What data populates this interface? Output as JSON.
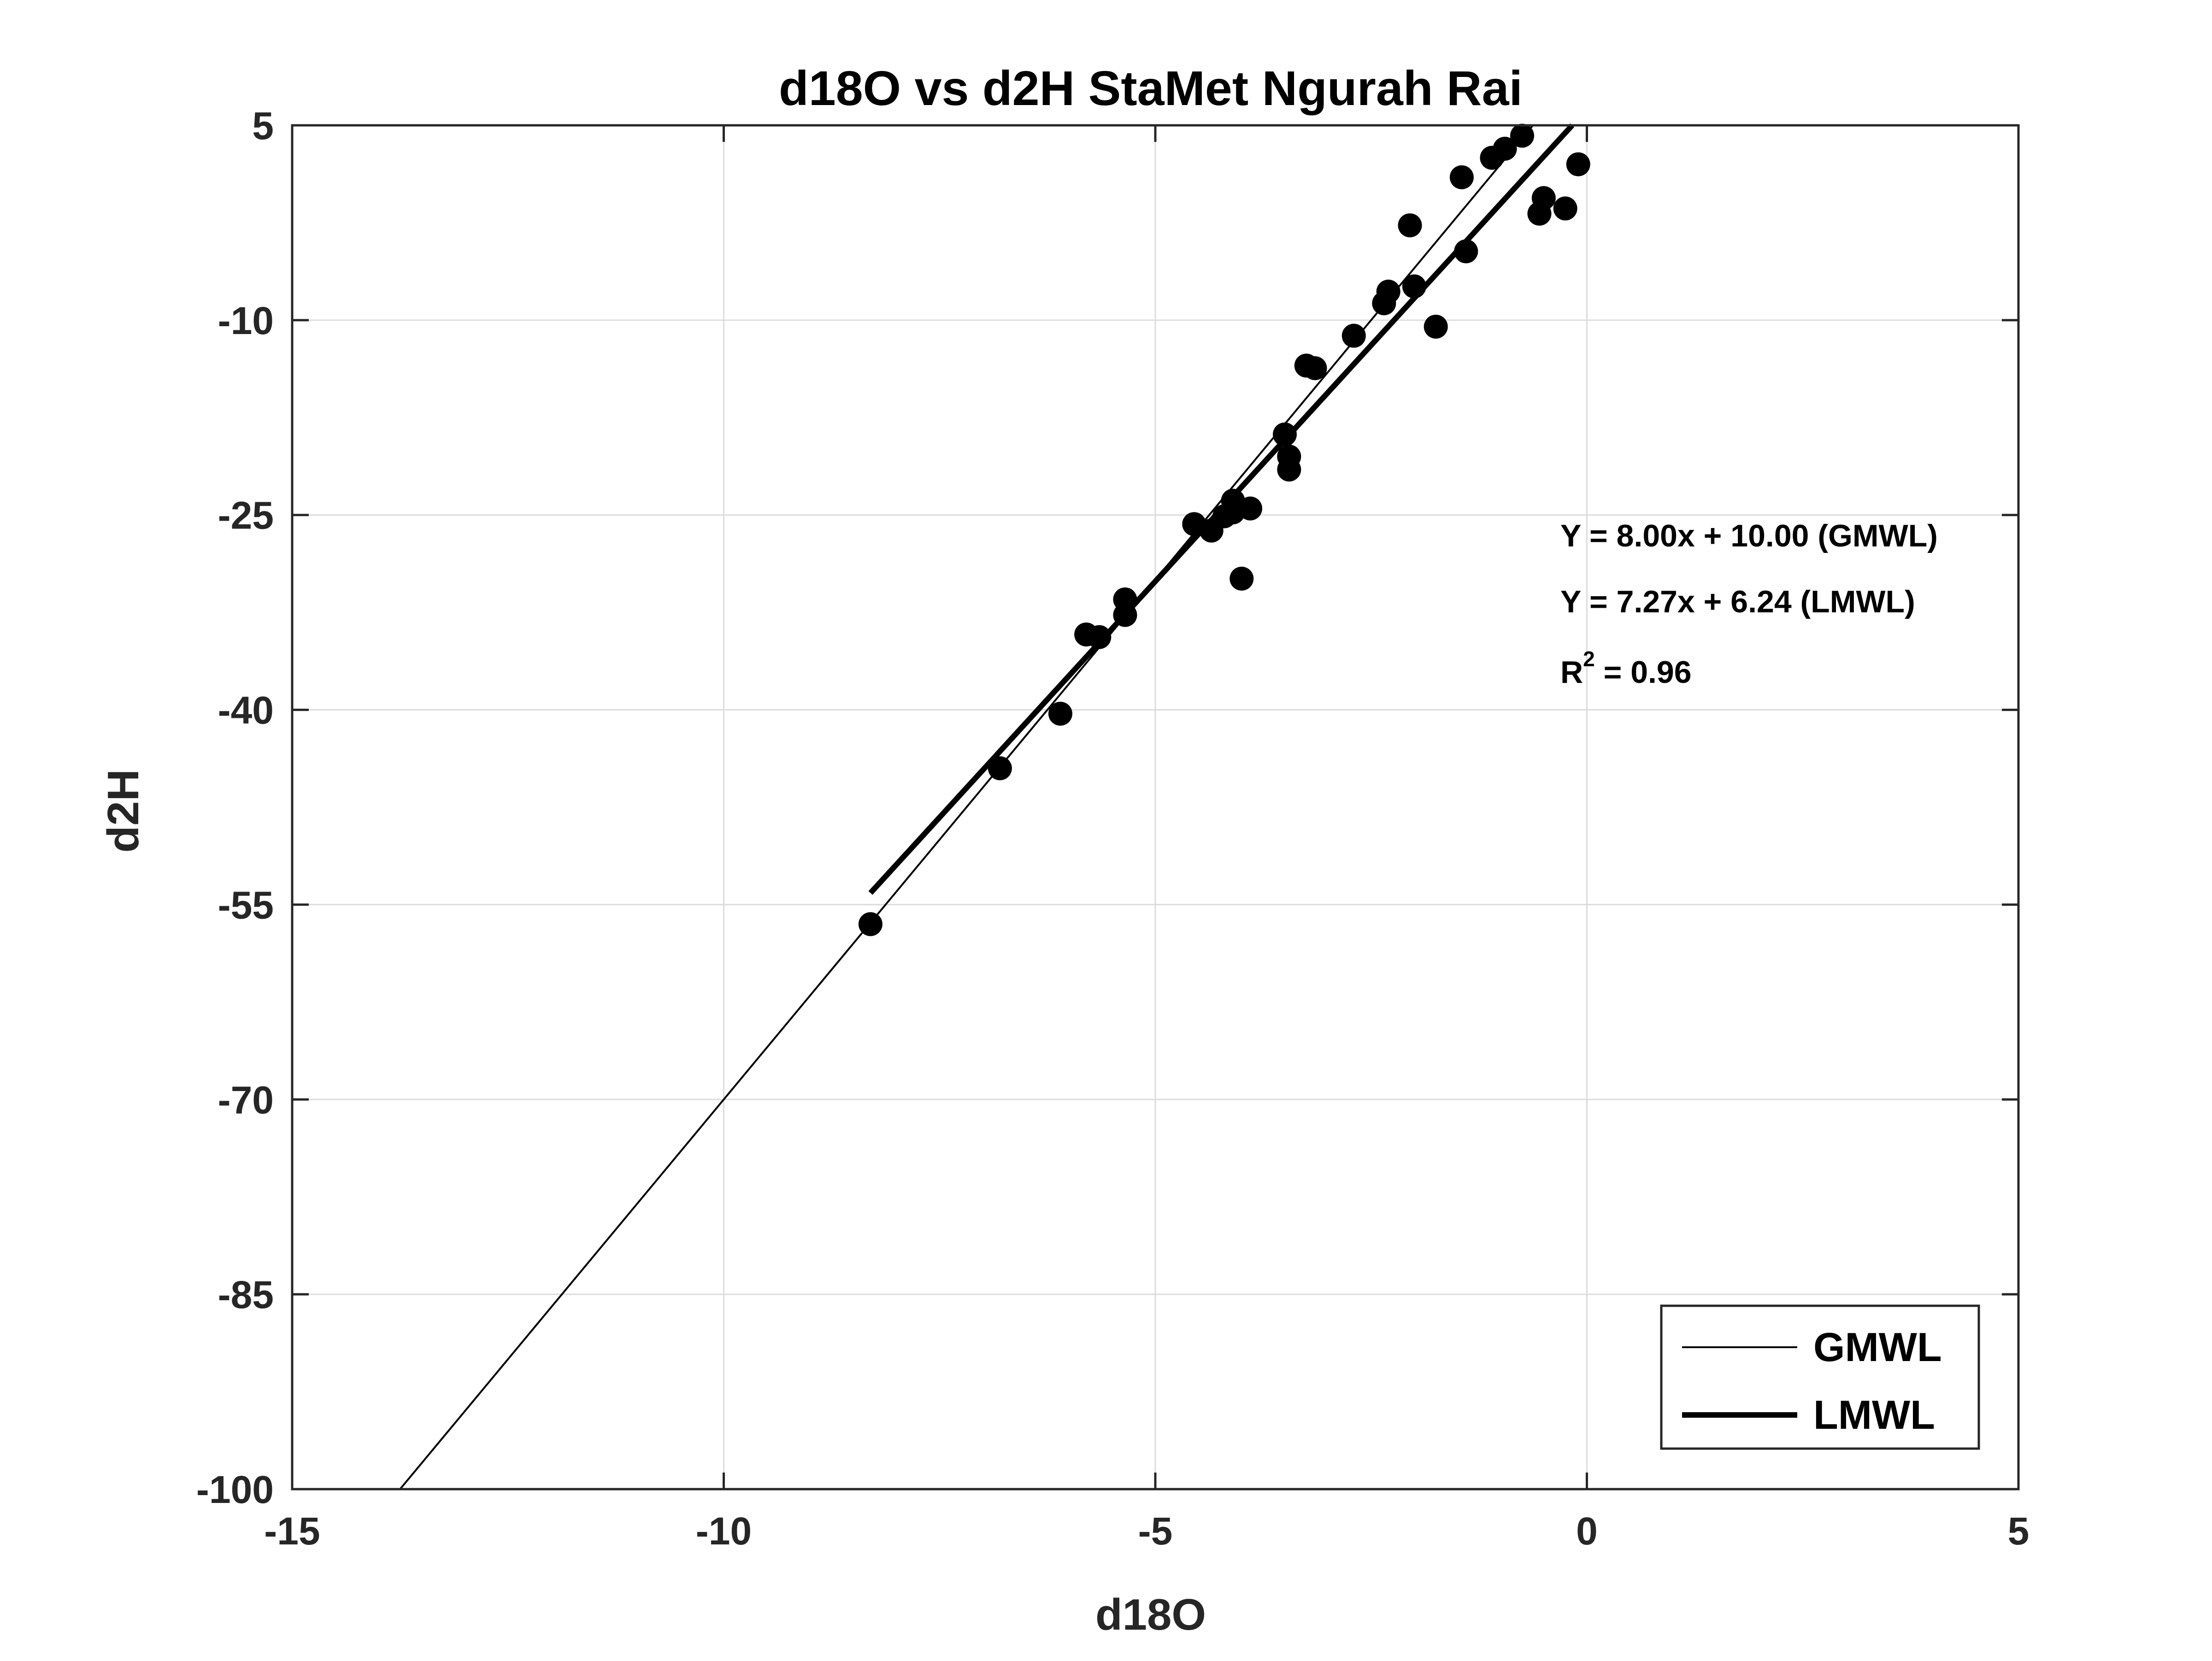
{
  "chart_data": {
    "type": "scatter",
    "title": "d18O vs d2H StaMet Ngurah Rai",
    "xlabel": "d18O",
    "ylabel": "d2H",
    "xlim": [
      -15,
      5
    ],
    "ylim": [
      -100,
      5
    ],
    "xticks": [
      -15,
      -10,
      -5,
      0,
      5
    ],
    "yticks": [
      -100,
      -85,
      -70,
      -55,
      -40,
      -25,
      -10,
      5
    ],
    "grid": true,
    "legend_position": "bottom-right",
    "colors": {
      "points": "#000000",
      "lines": "#000000",
      "grid": "#dcdcdc",
      "axes": "#262626"
    },
    "points": [
      [
        -8.3,
        -56.5
      ],
      [
        -6.8,
        -44.5
      ],
      [
        -6.1,
        -40.3
      ],
      [
        -5.8,
        -34.2
      ],
      [
        -5.65,
        -34.4
      ],
      [
        -5.35,
        -32.7
      ],
      [
        -5.35,
        -31.5
      ],
      [
        -4.55,
        -25.7
      ],
      [
        -4.35,
        -26.2
      ],
      [
        -4.2,
        -25.1
      ],
      [
        -4.1,
        -23.9
      ],
      [
        -4.1,
        -24.8
      ],
      [
        -3.9,
        -24.5
      ],
      [
        -4.0,
        -29.9
      ],
      [
        -3.5,
        -18.8
      ],
      [
        -3.45,
        -20.5
      ],
      [
        -3.45,
        -21.5
      ],
      [
        -3.25,
        -13.5
      ],
      [
        -3.15,
        -13.7
      ],
      [
        -2.7,
        -11.2
      ],
      [
        -2.35,
        -8.7
      ],
      [
        -2.3,
        -7.8
      ],
      [
        -2.05,
        -2.7
      ],
      [
        -2.0,
        -7.4
      ],
      [
        -1.75,
        -10.5
      ],
      [
        -1.45,
        1.0
      ],
      [
        -1.4,
        -4.7
      ],
      [
        -1.1,
        2.5
      ],
      [
        -0.95,
        3.2
      ],
      [
        -0.75,
        4.2
      ],
      [
        -0.55,
        -1.8
      ],
      [
        -0.5,
        -0.6
      ],
      [
        -0.25,
        -1.4
      ],
      [
        -0.1,
        2.0
      ]
    ],
    "series": [
      {
        "name": "GMWL",
        "slope": 8.0,
        "intercept": 10.0,
        "x_range": [
          -13.75,
          -0.63
        ],
        "line_width": 4
      },
      {
        "name": "LMWL",
        "slope": 7.27,
        "intercept": 6.24,
        "x_range": [
          -8.3,
          -0.17
        ],
        "line_width": 12
      }
    ],
    "annotations": {
      "gmwl_equation": "Y = 8.00x + 10.00 (GMWL)",
      "lmwl_equation": "Y = 7.27x + 6.24 (LMWL)",
      "r2_prefix": "R",
      "r2_sup": "2",
      "r2_value": " = 0.96"
    }
  }
}
